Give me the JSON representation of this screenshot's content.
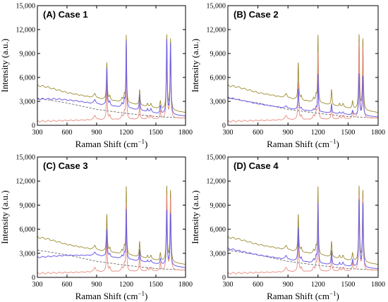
{
  "chart_data": {
    "type": "line",
    "shared": {
      "xlabel": "Raman Shift (cm",
      "xlabel_sup": "−1",
      "xlabel_close": ")",
      "ylabel": "Intensity (a.u.)",
      "xlim": [
        300,
        1800
      ],
      "ylim": [
        0,
        15000
      ],
      "xticks": [
        300,
        600,
        900,
        1200,
        1500,
        1800
      ],
      "xtick_labels": [
        "300",
        "600",
        "900",
        "1200",
        "1500",
        "1800"
      ],
      "yticks": [
        0,
        3000,
        6000,
        9000,
        12000,
        15000
      ],
      "ytick_labels": [
        "0",
        "3,000",
        "6,000",
        "9,000",
        "12,000",
        "15,000"
      ],
      "grid": false,
      "legend": "none"
    },
    "colors": {
      "raw": "#9a8a2e",
      "reference": "#e8897a",
      "processed": "#6b5ce8",
      "baseline": "#555555"
    },
    "peaks": [
      {
        "x": 882,
        "h": 0.06,
        "w": 12
      },
      {
        "x": 1003,
        "h": 0.5,
        "w": 5
      },
      {
        "x": 1033,
        "h": 0.05,
        "w": 6
      },
      {
        "x": 1157,
        "h": 0.05,
        "w": 8
      },
      {
        "x": 1181,
        "h": 0.09,
        "w": 6
      },
      {
        "x": 1200,
        "h": 0.9,
        "w": 4
      },
      {
        "x": 1335,
        "h": 0.21,
        "w": 5
      },
      {
        "x": 1415,
        "h": 0.04,
        "w": 6
      },
      {
        "x": 1450,
        "h": 0.05,
        "w": 8
      },
      {
        "x": 1545,
        "h": 0.1,
        "w": 6
      },
      {
        "x": 1610,
        "h": 1.0,
        "w": 5
      },
      {
        "x": 1648,
        "h": 0.95,
        "w": 5
      }
    ],
    "series": [
      {
        "key": "raw",
        "description_role": "raw spectrum with fluorescence background",
        "baseline_points": [
          [
            300,
            5000
          ],
          [
            400,
            4800
          ],
          [
            600,
            4100
          ],
          [
            900,
            3400
          ],
          [
            1200,
            2850
          ],
          [
            1500,
            2150
          ],
          [
            1800,
            1600
          ]
        ],
        "peak_scale": 9300
      },
      {
        "key": "reference",
        "description_role": "reference spectrum",
        "baseline_points": [
          [
            300,
            500
          ],
          [
            900,
            700
          ],
          [
            1500,
            800
          ],
          [
            1800,
            900
          ]
        ],
        "peak_scale": 9300
      },
      {
        "key": "baseline",
        "description_role": "estimated baseline (dashed)",
        "baseline_points": [
          [
            300,
            3400
          ],
          [
            600,
            2800
          ],
          [
            900,
            2000
          ],
          [
            1200,
            1500
          ],
          [
            1500,
            1100
          ],
          [
            1800,
            900
          ]
        ],
        "peak_scale": 0
      }
    ],
    "panels": [
      {
        "title": "(A) Case 1",
        "processed": {
          "baseline_points": [
            [
              300,
              3300
            ],
            [
              500,
              3300
            ],
            [
              700,
              3050
            ],
            [
              900,
              2650
            ],
            [
              1200,
              2200
            ],
            [
              1500,
              1500
            ],
            [
              1800,
              1150
            ]
          ],
          "peak_scale": 9300
        }
      },
      {
        "title": "(B) Case 2",
        "processed": {
          "baseline_points": [
            [
              300,
              3500
            ],
            [
              600,
              2700
            ],
            [
              900,
              2100
            ],
            [
              1200,
              1700
            ],
            [
              1500,
              1350
            ],
            [
              1800,
              1050
            ]
          ],
          "peak_scale": 5200
        }
      },
      {
        "title": "(C) Case 3",
        "processed": {
          "baseline_points": [
            [
              300,
              2500
            ],
            [
              600,
              2750
            ],
            [
              900,
              2750
            ],
            [
              1200,
              2300
            ],
            [
              1500,
              1700
            ],
            [
              1800,
              1200
            ]
          ],
          "peak_scale": 6800
        }
      },
      {
        "title": "(D) Case 4",
        "processed": {
          "baseline_points": [
            [
              300,
              3600
            ],
            [
              600,
              2800
            ],
            [
              900,
              2200
            ],
            [
              1200,
              1750
            ],
            [
              1500,
              1400
            ],
            [
              1800,
              1050
            ]
          ],
          "peak_scale": 8300
        }
      }
    ]
  }
}
